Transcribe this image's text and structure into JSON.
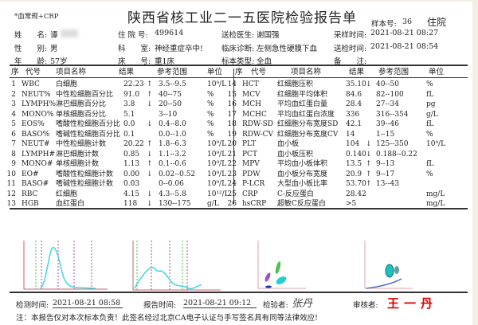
{
  "report": {
    "test_type": "*血常规+CRP",
    "title": "陕西省核工业二一五医院检验报告单",
    "sample_no_label": "样本号:",
    "sample_no": "36",
    "patient_type": "住院"
  },
  "patient": {
    "name_label": "姓　　名:",
    "name": "谭",
    "gender_label": "性　　别:",
    "gender": "男",
    "age_label": "年　　龄:",
    "age": "57岁",
    "admission_label": "住 院 号:",
    "admission_no": "499614",
    "dept_label": "科　　室:",
    "dept": "神经重症卒中!",
    "bed_label": "床　　号:",
    "bed": "重1床",
    "doctor_label": "送检医生:",
    "doctor": "谢国强",
    "diagnosis_label": "临床诊断:",
    "diagnosis": "左侧急性硬膜下血",
    "specimen_label": "标本类型:",
    "specimen": "全血",
    "sampling_label": "采样时间:",
    "sampling_time": "2021-08-21 08:27",
    "submit_label": "送检时间:",
    "submit_time": "2021-08-21 08:54",
    "remark_label": "备　　注:",
    "remark": ""
  },
  "columns": {
    "seq": "序",
    "code": "代号",
    "name": "项目名称",
    "result": "结果",
    "range": "参考范围",
    "unit": "单位"
  },
  "left_rows": [
    {
      "seq": "1",
      "code": "WBC",
      "name": "白细胞",
      "result": "22.23",
      "flag": "↑",
      "range": "3.5--9.5",
      "unit": "10⁹/L"
    },
    {
      "seq": "2",
      "code": "NEUT%",
      "name": "中性粒细胞百分比",
      "result": "91.0",
      "flag": "↑",
      "range": "40--75",
      "unit": "%"
    },
    {
      "seq": "3",
      "code": "LYMPH%",
      "name": "淋巴细胞百分比",
      "result": "3.8",
      "flag": "↓",
      "range": "20--50",
      "unit": "%"
    },
    {
      "seq": "4",
      "code": "MONO%",
      "name": "单核细胞百分比",
      "result": "5.1",
      "flag": "",
      "range": "3--10",
      "unit": "%"
    },
    {
      "seq": "5",
      "code": "EOS%",
      "name": "嗜酸性粒细胞百分比",
      "result": "0.0",
      "flag": "↓",
      "range": "0.4--8.0",
      "unit": "%"
    },
    {
      "seq": "6",
      "code": "BASO%",
      "name": "嗜碱性粒细胞百分比",
      "result": "0.1",
      "flag": "",
      "range": "0.0--1.0",
      "unit": "%"
    },
    {
      "seq": "7",
      "code": "NEUT#",
      "name": "中性粒细胞计数",
      "result": "20.22",
      "flag": "↑",
      "range": "1.8--6.3",
      "unit": "10⁹/L"
    },
    {
      "seq": "8",
      "code": "LYMPH#",
      "name": "淋巴细胞计数",
      "result": "0.85",
      "flag": "↓",
      "range": "1.1--3.2",
      "unit": "10⁹/L"
    },
    {
      "seq": "9",
      "code": "MONO#",
      "name": "单核细胞计数",
      "result": "1.13",
      "flag": "↑",
      "range": "0.1--0.6",
      "unit": "10⁹/L"
    },
    {
      "seq": "10",
      "code": "EO#",
      "name": "嗜酸性粒细胞计数",
      "result": "0.00",
      "flag": "↓",
      "range": "0.02--0.52",
      "unit": "10⁹/L"
    },
    {
      "seq": "11",
      "code": "BASO#",
      "name": "嗜碱性粒细胞计数",
      "result": "0.03",
      "flag": "",
      "range": "0--0.06",
      "unit": "10⁹/L"
    },
    {
      "seq": "12",
      "code": "RBC",
      "name": "红细胞",
      "result": "4.15",
      "flag": "↓",
      "range": "4.3--5.8",
      "unit": "10¹²/L"
    },
    {
      "seq": "13",
      "code": "HGB",
      "name": "血红蛋白",
      "result": "118",
      "flag": "↓",
      "range": "130--175",
      "unit": "g/L"
    }
  ],
  "right_rows": [
    {
      "seq": "14",
      "code": "HCT",
      "name": "红细胞压积",
      "result": "35.10",
      "flag": "↓",
      "range": "40--50",
      "unit": "%"
    },
    {
      "seq": "15",
      "code": "MCV",
      "name": "红细胞平均体积",
      "result": "84.6",
      "flag": "",
      "range": "82--100",
      "unit": "fL"
    },
    {
      "seq": "16",
      "code": "MCH",
      "name": "平均血红蛋白量",
      "result": "28.4",
      "flag": "",
      "range": "27--34",
      "unit": "pg"
    },
    {
      "seq": "17",
      "code": "MCHC",
      "name": "平均血红蛋白浓度",
      "result": "336",
      "flag": "",
      "range": "316--354",
      "unit": "g/L"
    },
    {
      "seq": "18",
      "code": "RDW-SD",
      "name": "红细胞分布宽度SD",
      "result": "42.1",
      "flag": "",
      "range": "39--46",
      "unit": "fL"
    },
    {
      "seq": "19",
      "code": "RDW-CV",
      "name": "红细胞分布宽度CV",
      "result": "14",
      "flag": "",
      "range": "1--15",
      "unit": "%"
    },
    {
      "seq": "20",
      "code": "PLT",
      "name": "血小板",
      "result": "104",
      "flag": "↓",
      "range": "125--350",
      "unit": "10⁹/L"
    },
    {
      "seq": "21",
      "code": "PCT",
      "name": "血小板压积",
      "result": "0.140",
      "flag": "↓",
      "range": "0.188--0.22",
      "unit": ""
    },
    {
      "seq": "22",
      "code": "MPV",
      "name": "平均血小板体积",
      "result": "13.5",
      "flag": "↑",
      "range": "9--13",
      "unit": "fL"
    },
    {
      "seq": "23",
      "code": "PDW",
      "name": "血小板分布宽度",
      "result": "20.9",
      "flag": "↑",
      "range": "9--17",
      "unit": "%"
    },
    {
      "seq": "24",
      "code": "P-LCR",
      "name": "大型血小板比率",
      "result": "53.70",
      "flag": "↑",
      "range": "13--43",
      "unit": ""
    },
    {
      "seq": "25",
      "code": "CRP",
      "name": "C-反应蛋白",
      "result": "28.42",
      "flag": "",
      "range": "",
      "unit": "mg/L"
    },
    {
      "seq": "26",
      "code": "hsCRP",
      "name": "超敏C反应蛋白",
      "result": ">5",
      "flag": "",
      "range": "",
      "unit": "mg/L"
    }
  ],
  "footer": {
    "test_time_label": "检测时间:",
    "test_time": "2021-08-21 08:58",
    "report_time_label": "报告时间:",
    "report_time": "2021-08-21 09:12",
    "tester_label": "检验者:",
    "tester_signature": "张丹",
    "reviewer_label": "审核者:",
    "reviewer_signature": "王一丹",
    "note": "注：本报告仅对本次标本负责！此签名经过北京CA电子认证与手写签名具有同等法律效应!"
  },
  "colors": {
    "histogram_curve": "#40d8e0",
    "axis": "#c86070",
    "signature": "#dd0000"
  }
}
